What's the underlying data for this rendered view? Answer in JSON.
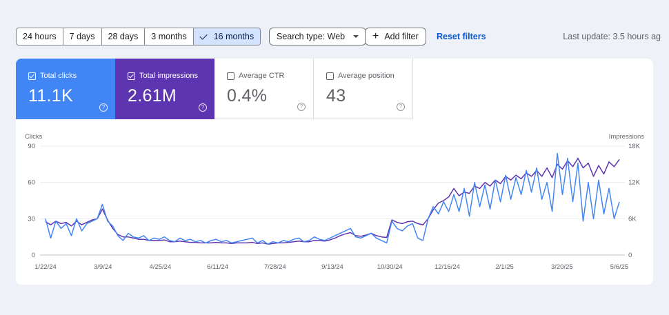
{
  "toolbar": {
    "date_ranges": [
      {
        "label": "24 hours",
        "selected": false
      },
      {
        "label": "7 days",
        "selected": false
      },
      {
        "label": "28 days",
        "selected": false
      },
      {
        "label": "3 months",
        "selected": false
      },
      {
        "label": "16 months",
        "selected": true
      }
    ],
    "search_type_label": "Search type: Web",
    "add_filter_label": "Add filter",
    "reset_label": "Reset filters",
    "last_update": "Last update: 3.5 hours ag"
  },
  "metrics": {
    "clicks": {
      "label": "Total clicks",
      "value": "11.1K",
      "checked": true,
      "color": "#4285f4"
    },
    "impressions": {
      "label": "Total impressions",
      "value": "2.61M",
      "checked": true,
      "color": "#5e35b1"
    },
    "ctr": {
      "label": "Average CTR",
      "value": "0.4%",
      "checked": false
    },
    "position": {
      "label": "Average position",
      "value": "43",
      "checked": false
    }
  },
  "chart_data": {
    "type": "line",
    "left_axis_label": "Clicks",
    "right_axis_label": "Impressions",
    "left_ticks": [
      "90",
      "60",
      "30",
      "0"
    ],
    "right_ticks": [
      "18K",
      "12K",
      "6K",
      "0"
    ],
    "ylim_left": [
      0,
      90
    ],
    "ylim_right": [
      0,
      18000
    ],
    "x_ticks": [
      "1/22/24",
      "3/9/24",
      "4/25/24",
      "6/11/24",
      "7/28/24",
      "9/13/24",
      "10/30/24",
      "12/16/24",
      "2/1/25",
      "3/20/25",
      "5/6/25"
    ],
    "grid": true,
    "series": [
      {
        "name": "Clicks",
        "axis": "left",
        "color": "#4285f4",
        "values": [
          30,
          14,
          28,
          22,
          26,
          16,
          30,
          20,
          26,
          28,
          30,
          42,
          28,
          24,
          16,
          12,
          18,
          15,
          14,
          16,
          12,
          14,
          13,
          15,
          12,
          11,
          14,
          12,
          13,
          11,
          12,
          10,
          12,
          13,
          11,
          12,
          10,
          11,
          12,
          13,
          14,
          10,
          12,
          9,
          11,
          10,
          12,
          11,
          13,
          14,
          11,
          12,
          15,
          13,
          12,
          14,
          16,
          18,
          20,
          22,
          15,
          14,
          16,
          18,
          14,
          12,
          10,
          28,
          22,
          20,
          24,
          26,
          14,
          12,
          30,
          40,
          34,
          44,
          36,
          50,
          36,
          55,
          32,
          60,
          40,
          58,
          38,
          62,
          44,
          66,
          46,
          64,
          50,
          70,
          52,
          72,
          46,
          60,
          36,
          84,
          50,
          80,
          44,
          76,
          28,
          60,
          30,
          62,
          34,
          55,
          30,
          44
        ]
      },
      {
        "name": "Impressions",
        "axis": "right",
        "color": "#5e35b1",
        "values": [
          5500,
          5000,
          5600,
          5200,
          5400,
          4800,
          5600,
          5000,
          5400,
          5800,
          6000,
          7600,
          5800,
          4400,
          3400,
          3000,
          3000,
          2800,
          2600,
          2600,
          2400,
          2400,
          2400,
          2500,
          2200,
          2200,
          2300,
          2200,
          2100,
          2100,
          2000,
          2000,
          2000,
          2100,
          2000,
          2000,
          1900,
          2000,
          2000,
          2000,
          2100,
          1900,
          2000,
          1800,
          1900,
          2000,
          2000,
          2100,
          2200,
          2300,
          2200,
          2200,
          2400,
          2400,
          2300,
          2500,
          2800,
          3200,
          3500,
          3700,
          3200,
          3100,
          3300,
          3600,
          3200,
          3000,
          2900,
          5800,
          5400,
          5200,
          5500,
          5600,
          5200,
          5000,
          6000,
          7500,
          8600,
          9000,
          9600,
          11000,
          9800,
          10400,
          10200,
          11400,
          11000,
          12000,
          11400,
          12400,
          11800,
          13000,
          12400,
          13200,
          12600,
          13600,
          13000,
          14000,
          13000,
          14400,
          12800,
          15000,
          14200,
          15600,
          14600,
          16000,
          14400,
          15200,
          13000,
          14800,
          13400,
          15400,
          14600,
          15800
        ]
      }
    ]
  }
}
